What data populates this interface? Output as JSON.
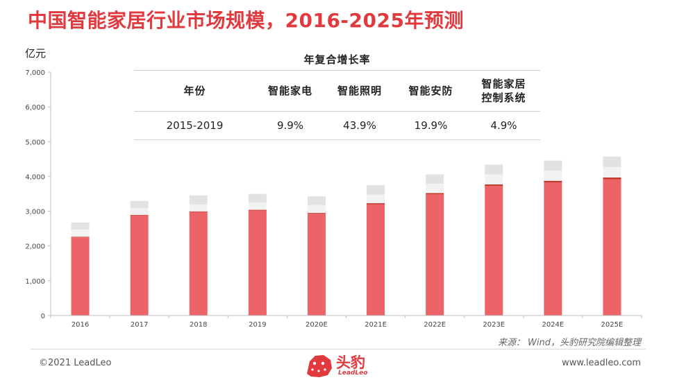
{
  "page": {
    "title": "中国智能家居行业市场规模，2016-2025年预测",
    "unit": "亿元",
    "source": "来源： Wind，头豹研究院编辑整理",
    "copyright": "©2021 LeadLeo",
    "website": "www.leadleo.com",
    "logo_cn": "头豹",
    "logo_en": "LeadLeo"
  },
  "growth_table": {
    "title": "年复合增长率",
    "headers": [
      "年份",
      "智能家电",
      "智能照明",
      "智能安防",
      "智能家居\n控制系统"
    ],
    "row": [
      "2015-2019",
      "9.9%",
      "43.9%",
      "19.9%",
      "4.9%"
    ]
  },
  "colors": {
    "title": "#e03a3e",
    "appliances": "#ec6368",
    "lighting": "#c0392b",
    "security": "#f2f2f2",
    "control": "#e2e2e2"
  },
  "chart_data": {
    "type": "bar",
    "stacked": true,
    "categories": [
      "2016",
      "2017",
      "2018",
      "2019",
      "2020E",
      "2021E",
      "2022E",
      "2023E",
      "2024E",
      "2025E"
    ],
    "series": [
      {
        "values": [
          2250,
          2880,
          2980,
          3020,
          2930,
          3200,
          3490,
          3730,
          3830,
          3920
        ]
      },
      {
        "values": [
          15,
          15,
          15,
          20,
          20,
          30,
          30,
          40,
          45,
          50
        ]
      },
      {
        "values": [
          210,
          190,
          200,
          210,
          230,
          250,
          270,
          290,
          290,
          300
        ]
      },
      {
        "values": [
          200,
          210,
          260,
          250,
          250,
          270,
          270,
          280,
          290,
          300
        ]
      }
    ],
    "ylim": [
      0,
      7000
    ],
    "yticks": [
      0,
      1000,
      2000,
      3000,
      4000,
      5000,
      6000,
      7000
    ],
    "ytick_labels": [
      "0",
      "1,000",
      "2,000",
      "3,000",
      "4,000",
      "5,000",
      "6,000",
      "7,000"
    ],
    "grid": false
  }
}
